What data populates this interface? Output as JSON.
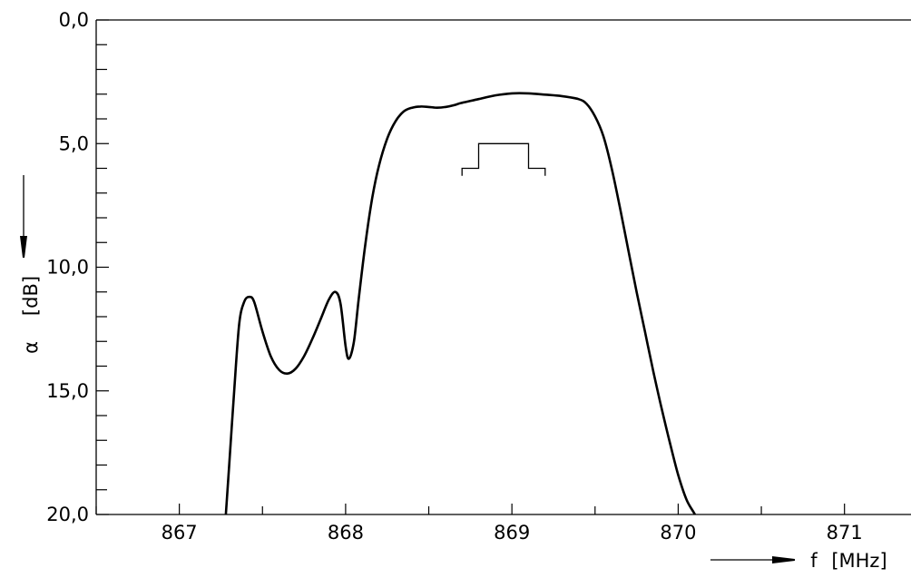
{
  "chart_data": {
    "type": "line",
    "title": "",
    "xlabel": "f",
    "xunit": "[MHz]",
    "ylabel": "α",
    "yunit": "[dB]",
    "xlim": [
      866.5,
      871.4
    ],
    "ylim": [
      0,
      20
    ],
    "y_inverted": true,
    "x_ticks": [
      867,
      868,
      869,
      870,
      871
    ],
    "x_tick_labels": [
      "867",
      "868",
      "869",
      "870",
      "871"
    ],
    "y_ticks": [
      0,
      5,
      10,
      15,
      20
    ],
    "y_tick_labels": [
      "0,0",
      "5,0",
      "10,0",
      "15,0",
      "20,0"
    ],
    "grid": false,
    "series": [
      {
        "x": [
          867.28,
          867.3,
          867.33,
          867.36,
          867.39,
          867.42,
          867.45,
          867.5,
          867.55,
          867.6,
          867.65,
          867.7,
          867.75,
          867.8,
          867.85,
          867.9,
          867.94,
          867.97,
          868.0,
          868.02,
          868.05,
          868.08,
          868.12,
          868.16,
          868.2,
          868.25,
          868.3,
          868.35,
          868.4,
          868.45,
          868.5,
          868.55,
          868.6,
          868.65,
          868.7,
          868.8,
          868.9,
          869.0,
          869.1,
          869.2,
          869.3,
          869.4,
          869.45,
          869.5,
          869.55,
          869.6,
          869.65,
          869.7,
          869.75,
          869.8,
          869.85,
          869.9,
          869.95,
          870.0,
          870.05,
          870.1,
          870.14
        ],
        "y": [
          20.0,
          18.0,
          15.0,
          12.3,
          11.4,
          11.2,
          11.4,
          12.6,
          13.6,
          14.15,
          14.3,
          14.1,
          13.6,
          12.9,
          12.1,
          11.3,
          11.0,
          11.5,
          13.2,
          13.7,
          13.0,
          11.2,
          9.0,
          7.2,
          5.9,
          4.8,
          4.1,
          3.7,
          3.55,
          3.5,
          3.52,
          3.55,
          3.52,
          3.45,
          3.35,
          3.2,
          3.05,
          2.97,
          2.97,
          3.02,
          3.08,
          3.2,
          3.4,
          3.9,
          4.7,
          6.0,
          7.6,
          9.3,
          11.0,
          12.6,
          14.2,
          15.7,
          17.1,
          18.4,
          19.4,
          20.0,
          20.6
        ]
      }
    ],
    "annotations": [
      {
        "type": "tolerance-mask",
        "x": [
          868.7,
          868.7,
          868.8,
          868.8,
          869.1,
          869.1,
          869.2,
          869.2
        ],
        "y": [
          6.3,
          6.0,
          6.0,
          5.0,
          5.0,
          6.0,
          6.0,
          6.3
        ]
      }
    ]
  }
}
